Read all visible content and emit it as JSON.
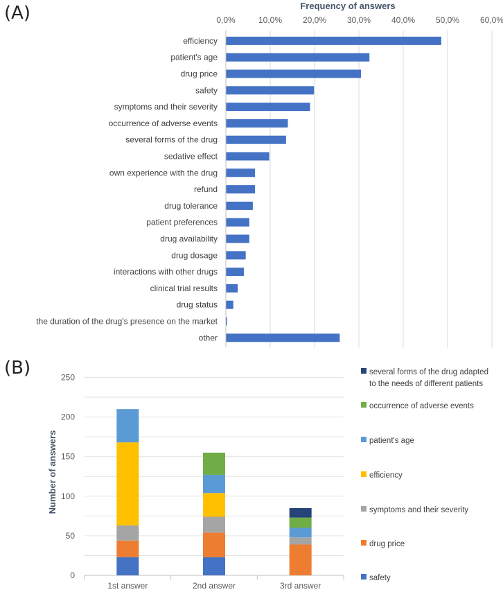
{
  "panel_a_label": "(A)",
  "panel_b_label": "(B)",
  "chart_data": [
    {
      "type": "bar",
      "orientation": "horizontal",
      "title": "Frequency of answers",
      "xlim": [
        0,
        60
      ],
      "tick_labels": [
        "0,0%",
        "10,0%",
        "20,0%",
        "30,0%",
        "40,0%",
        "50,0%",
        "60,0%"
      ],
      "bar_color": "#4472c4",
      "categories": [
        "efficiency",
        "patient's age",
        "drug price",
        "safety",
        "symptoms and their severity",
        "occurrence of adverse events",
        "several forms of the drug",
        "sedative effect",
        "own experience with the drug",
        "refund",
        "drug tolerance",
        "patient preferences",
        "drug availability",
        "drug dosage",
        "interactions with other drugs",
        "clinical trial results",
        "drug status",
        "the duration of the drug's presence on the market",
        "other"
      ],
      "values": [
        48.5,
        32.3,
        30.4,
        19.8,
        18.9,
        13.9,
        13.5,
        9.7,
        6.5,
        6.5,
        6.0,
        5.2,
        5.2,
        4.4,
        4.0,
        2.6,
        1.6,
        0.2,
        25.6
      ]
    },
    {
      "type": "bar",
      "stacked": true,
      "ylabel": "Number of answers",
      "ylim": [
        0,
        250
      ],
      "y_ticks": [
        "0",
        "50",
        "100",
        "150",
        "200",
        "250"
      ],
      "categories": [
        "1st answer",
        "2nd answer",
        "3rd answer"
      ],
      "series": [
        {
          "name": "safety",
          "color": "#4472c4",
          "values": [
            23,
            23,
            0
          ]
        },
        {
          "name": "drug price",
          "color": "#ed7d31",
          "values": [
            21,
            31,
            39
          ]
        },
        {
          "name": "symptoms and their severity",
          "color": "#a5a5a5",
          "values": [
            19,
            20,
            9
          ]
        },
        {
          "name": "efficiency",
          "color": "#ffc000",
          "values": [
            105,
            30,
            0
          ]
        },
        {
          "name": "patient's age",
          "color": "#5b9bd5",
          "values": [
            42,
            23,
            12
          ]
        },
        {
          "name": "occurrence of adverse events",
          "color": "#70ad47",
          "values": [
            0,
            28,
            13
          ]
        },
        {
          "name": "several forms of the drug adapted to the needs of different patients",
          "color": "#264478",
          "values": [
            0,
            0,
            12
          ]
        }
      ],
      "legend_lines": {
        "several forms of the drug adapted to the needs of different patients": [
          "several forms of the drug adapted",
          "to the needs of different patients"
        ]
      },
      "legend_position": "right"
    }
  ]
}
